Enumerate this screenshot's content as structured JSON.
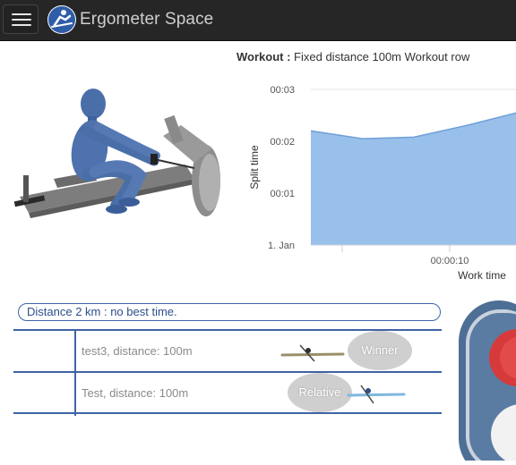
{
  "navbar": {
    "brand": "Ergometer Space",
    "menu_icon": "hamburger-menu-icon",
    "logo_icon": "rower-logo-icon"
  },
  "workout": {
    "label": "Workout :",
    "title": "Fixed distance 100m Workout row"
  },
  "chart_data": {
    "type": "area",
    "title": "Workout : Fixed distance 100m Workout row",
    "xlabel": "Work time",
    "ylabel": "Split time",
    "y_ticks": [
      "1. Jan",
      "00:01",
      "00:02",
      "00:03"
    ],
    "x_ticks": [
      "00:00:10"
    ],
    "ylim_seconds": [
      0,
      3
    ],
    "x_seconds": [
      0,
      5,
      10,
      15,
      20
    ],
    "y_seconds": [
      2.2,
      2.05,
      2.08,
      2.3,
      2.55
    ],
    "grid": true,
    "color": "#93bdea",
    "stroke": "#6f9fd8"
  },
  "ranking": {
    "distance_label": "Distance 2 km : no best time.",
    "rows": [
      {
        "label": "test3, distance: 100m",
        "badge": "Winner"
      },
      {
        "label": "Test, distance: 100m",
        "badge": "Relative"
      }
    ]
  },
  "colors": {
    "navbar_bg": "#262626",
    "accent_blue": "#3e64a5",
    "badge_bg": "#cfcfcf"
  }
}
